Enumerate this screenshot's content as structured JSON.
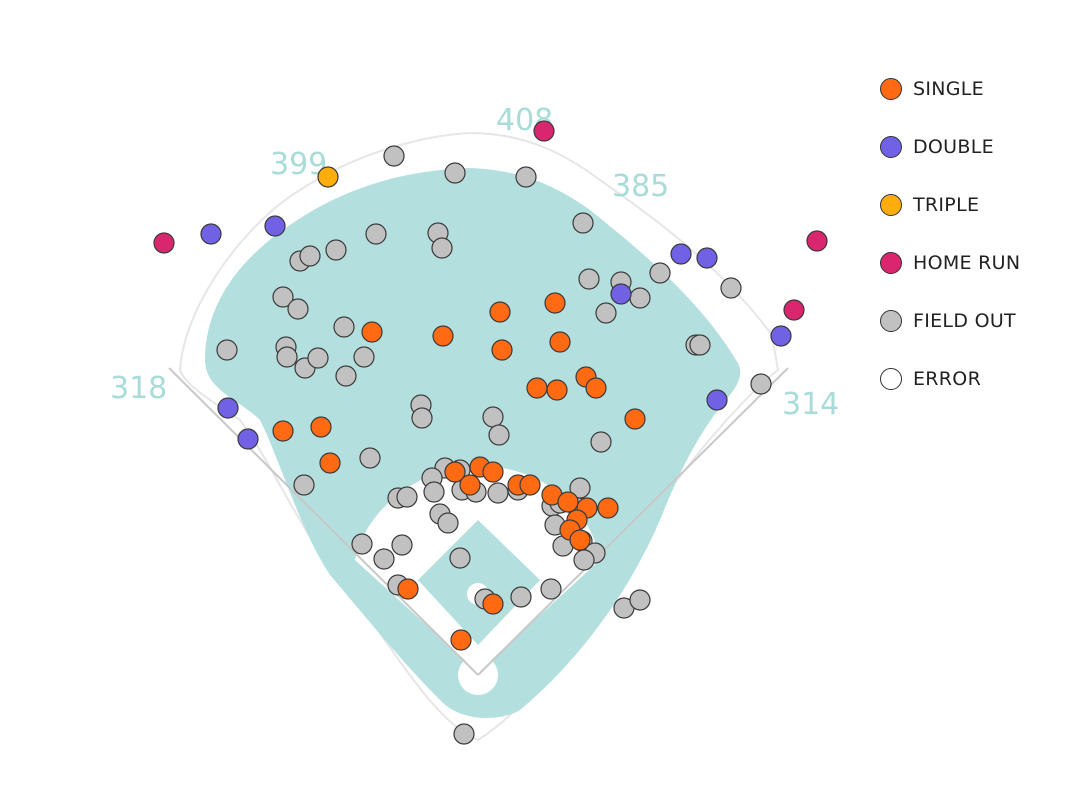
{
  "chart_data": {
    "type": "scatter",
    "title": "",
    "fence_distances": [
      {
        "label": "318"
      },
      {
        "label": "399"
      },
      {
        "label": "408"
      },
      {
        "label": "385"
      },
      {
        "label": "314"
      }
    ],
    "series": [
      {
        "name": "SINGLE",
        "color": "#ff6a13",
        "points": [
          [
            372,
            332
          ],
          [
            443,
            336
          ],
          [
            500,
            312
          ],
          [
            555,
            303
          ],
          [
            502,
            350
          ],
          [
            560,
            342
          ],
          [
            537,
            388
          ],
          [
            557,
            390
          ],
          [
            586,
            377
          ],
          [
            596,
            388
          ],
          [
            635,
            419
          ],
          [
            283,
            431
          ],
          [
            321,
            427
          ],
          [
            330,
            463
          ],
          [
            455,
            472
          ],
          [
            470,
            485
          ],
          [
            480,
            467
          ],
          [
            493,
            472
          ],
          [
            518,
            485
          ],
          [
            530,
            485
          ],
          [
            552,
            495
          ],
          [
            568,
            502
          ],
          [
            587,
            508
          ],
          [
            608,
            508
          ],
          [
            577,
            520
          ],
          [
            570,
            530
          ],
          [
            580,
            540
          ],
          [
            408,
            589
          ],
          [
            493,
            604
          ],
          [
            461,
            640
          ]
        ]
      },
      {
        "name": "DOUBLE",
        "color": "#7161e5",
        "points": [
          [
            211,
            234
          ],
          [
            275,
            226
          ],
          [
            681,
            254
          ],
          [
            707,
            258
          ],
          [
            621,
            294
          ],
          [
            781,
            336
          ],
          [
            228,
            408
          ],
          [
            248,
            439
          ],
          [
            717,
            400
          ]
        ]
      },
      {
        "name": "TRIPLE",
        "color": "#ffad0a",
        "points": [
          [
            328,
            177
          ]
        ]
      },
      {
        "name": "HOME RUN",
        "color": "#d9266f",
        "points": [
          [
            164,
            243
          ],
          [
            544,
            131
          ],
          [
            817,
            241
          ],
          [
            794,
            310
          ]
        ]
      },
      {
        "name": "FIELD OUT",
        "color": "#c1c1c1",
        "points": [
          [
            394,
            156
          ],
          [
            455,
            173
          ],
          [
            526,
            177
          ],
          [
            583,
            223
          ],
          [
            376,
            234
          ],
          [
            438,
            233
          ],
          [
            442,
            248
          ],
          [
            336,
            250
          ],
          [
            300,
            261
          ],
          [
            310,
            256
          ],
          [
            589,
            279
          ],
          [
            621,
            282
          ],
          [
            640,
            298
          ],
          [
            660,
            273
          ],
          [
            731,
            288
          ],
          [
            283,
            297
          ],
          [
            298,
            309
          ],
          [
            606,
            313
          ],
          [
            344,
            327
          ],
          [
            286,
            347
          ],
          [
            287,
            357
          ],
          [
            305,
            368
          ],
          [
            318,
            358
          ],
          [
            364,
            357
          ],
          [
            346,
            376
          ],
          [
            227,
            350
          ],
          [
            696,
            345
          ],
          [
            700,
            345
          ],
          [
            761,
            384
          ],
          [
            421,
            405
          ],
          [
            422,
            418
          ],
          [
            493,
            417
          ],
          [
            499,
            435
          ],
          [
            601,
            442
          ],
          [
            370,
            458
          ],
          [
            304,
            485
          ],
          [
            445,
            468
          ],
          [
            460,
            470
          ],
          [
            432,
            478
          ],
          [
            434,
            492
          ],
          [
            462,
            490
          ],
          [
            476,
            492
          ],
          [
            498,
            493
          ],
          [
            518,
            490
          ],
          [
            552,
            506
          ],
          [
            560,
            503
          ],
          [
            580,
            488
          ],
          [
            578,
            508
          ],
          [
            398,
            498
          ],
          [
            407,
            497
          ],
          [
            440,
            514
          ],
          [
            448,
            523
          ],
          [
            555,
            525
          ],
          [
            582,
            541
          ],
          [
            595,
            553
          ],
          [
            563,
            546
          ],
          [
            584,
            560
          ],
          [
            362,
            544
          ],
          [
            384,
            559
          ],
          [
            402,
            545
          ],
          [
            398,
            585
          ],
          [
            460,
            558
          ],
          [
            485,
            599
          ],
          [
            521,
            597
          ],
          [
            551,
            589
          ],
          [
            624,
            608
          ],
          [
            640,
            600
          ],
          [
            464,
            734
          ]
        ]
      },
      {
        "name": "ERROR",
        "color": "#ffffff",
        "points": []
      }
    ]
  }
}
